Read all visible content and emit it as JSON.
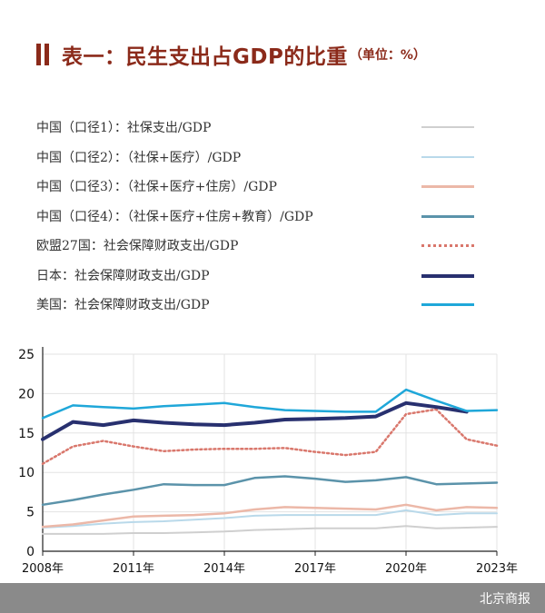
{
  "header": {
    "title": "表一：民生支出占GDP的比重",
    "unit": "（单位：%）",
    "accent_color": "#8b2a1a"
  },
  "legend": [
    {
      "label": "中国（口径1）：社保支出/GDP",
      "color": "#cfcfcf",
      "style": "solid"
    },
    {
      "label": "中国（口径2）：（社保+医疗）/GDP",
      "color": "#b9d9ea",
      "style": "solid"
    },
    {
      "label": "中国（口径3）：（社保+医疗+住房）/GDP",
      "color": "#ecb8a8",
      "style": "solid"
    },
    {
      "label": "中国（口径4）：（社保+医疗+住房+教育）/GDP",
      "color": "#5b93aa",
      "style": "solid"
    },
    {
      "label": "欧盟27国：社会保障财政支出/GDP",
      "color": "#d9776c",
      "style": "dotted"
    },
    {
      "label": "日本：社会保障财政支出/GDP",
      "color": "#28306f",
      "style": "solid"
    },
    {
      "label": "美国：社会保障财政支出/GDP",
      "color": "#1fa7d9",
      "style": "solid"
    }
  ],
  "chart_data": {
    "type": "line",
    "x": [
      2008,
      2009,
      2010,
      2011,
      2012,
      2013,
      2014,
      2015,
      2016,
      2017,
      2018,
      2019,
      2020,
      2021,
      2022,
      2023
    ],
    "x_tick_labels": [
      "2008年",
      "2011年",
      "2014年",
      "2017年",
      "2020年",
      "2023年"
    ],
    "x_ticks": [
      2008,
      2011,
      2014,
      2017,
      2020,
      2023
    ],
    "y_ticks": [
      0,
      5,
      10,
      15,
      20,
      25
    ],
    "xlim": [
      2008,
      2023
    ],
    "ylim": [
      0,
      25
    ],
    "series": [
      {
        "name": "中国（口径1）：社保支出/GDP",
        "values": [
          2.2,
          2.2,
          2.2,
          2.3,
          2.3,
          2.4,
          2.5,
          2.7,
          2.8,
          2.9,
          2.9,
          2.9,
          3.2,
          2.9,
          3.0,
          3.1
        ]
      },
      {
        "name": "中国（口径2）：（社保+医疗）/GDP",
        "values": [
          3.0,
          3.2,
          3.5,
          3.7,
          3.8,
          4.0,
          4.2,
          4.5,
          4.6,
          4.6,
          4.6,
          4.6,
          5.2,
          4.6,
          4.8,
          4.8
        ]
      },
      {
        "name": "中国（口径3）：（社保+医疗+住房）/GDP",
        "values": [
          3.1,
          3.4,
          3.9,
          4.4,
          4.5,
          4.6,
          4.8,
          5.3,
          5.6,
          5.5,
          5.4,
          5.3,
          5.9,
          5.2,
          5.6,
          5.5
        ]
      },
      {
        "name": "中国（口径4）：（社保+医疗+住房+教育）/GDP",
        "values": [
          5.9,
          6.5,
          7.2,
          7.8,
          8.5,
          8.4,
          8.4,
          9.3,
          9.5,
          9.2,
          8.8,
          9.0,
          9.4,
          8.5,
          8.6,
          8.7
        ]
      },
      {
        "name": "欧盟27国：社会保障财政支出/GDP",
        "values": [
          11.1,
          13.3,
          14.0,
          13.3,
          12.7,
          12.9,
          13.0,
          13.0,
          13.1,
          12.6,
          12.2,
          12.6,
          17.4,
          18.0,
          14.2,
          13.4
        ]
      },
      {
        "name": "日本：社会保障财政支出/GDP",
        "values": [
          14.2,
          16.4,
          16.0,
          16.6,
          16.3,
          16.1,
          16.0,
          16.3,
          16.7,
          16.8,
          16.9,
          17.1,
          18.8,
          18.3,
          17.7,
          null
        ]
      },
      {
        "name": "美国：社会保障财政支出/GDP",
        "values": [
          16.9,
          18.5,
          18.3,
          18.1,
          18.4,
          18.6,
          18.8,
          18.3,
          17.9,
          17.8,
          17.7,
          17.7,
          20.5,
          19.1,
          17.8,
          17.9
        ]
      }
    ],
    "title": "表一：民生支出占GDP的比重（单位：%）",
    "xlabel": "",
    "ylabel": "",
    "grid": true
  },
  "footer": {
    "source": "北京商报"
  }
}
